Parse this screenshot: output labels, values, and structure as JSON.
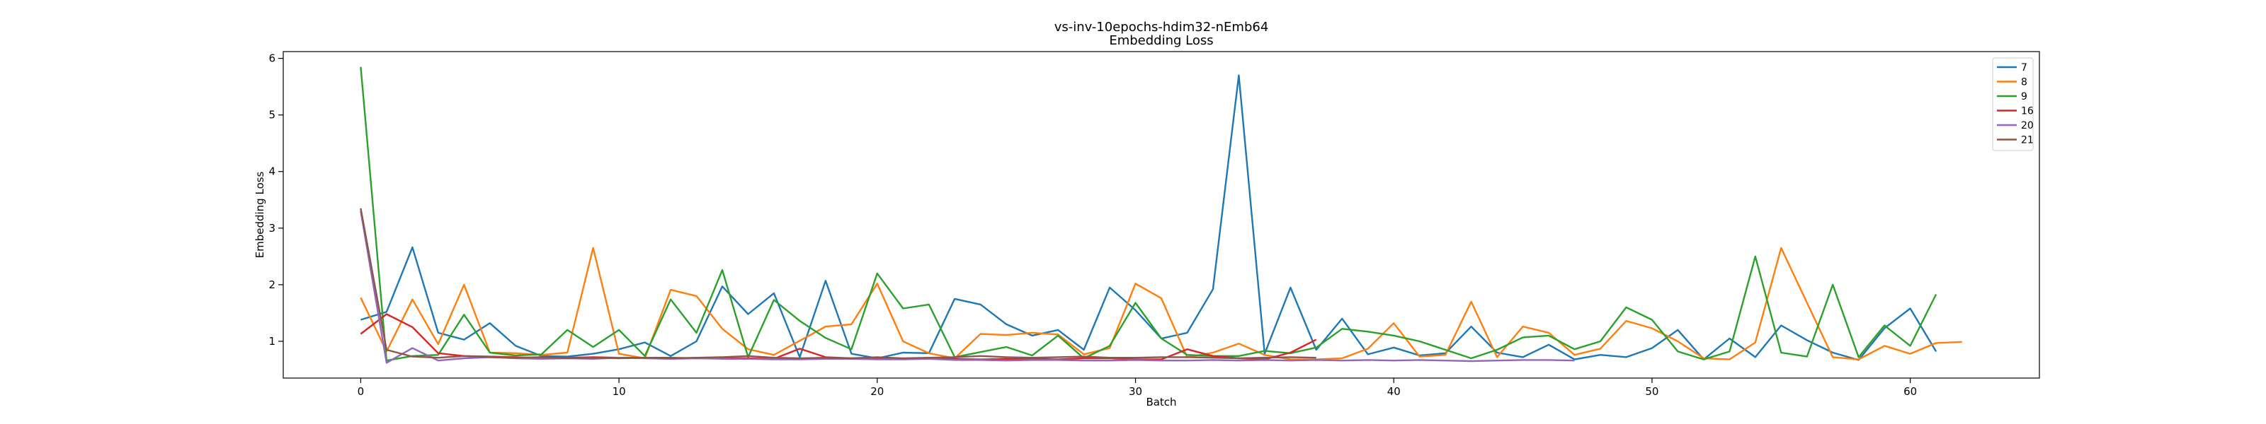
{
  "chart_data": {
    "type": "line",
    "title": "vs-inv-10epochs-hdim32-nEmb64",
    "subtitle": "Embedding Loss",
    "xlabel": "Batch",
    "ylabel": "Embedding Loss",
    "xlim": [
      -3,
      65
    ],
    "ylim": [
      0.35,
      6.12
    ],
    "xticks": [
      0,
      10,
      20,
      30,
      40,
      50,
      60
    ],
    "yticks": [
      1,
      2,
      3,
      4,
      5,
      6
    ],
    "grid": false,
    "legend_position": "top-right",
    "series": [
      {
        "name": "7",
        "color": "#1f77b4",
        "values": [
          1.38,
          1.52,
          2.66,
          1.15,
          1.03,
          1.32,
          0.92,
          0.74,
          0.73,
          0.78,
          0.86,
          0.98,
          0.74,
          1.0,
          1.97,
          1.48,
          1.85,
          0.72,
          2.07,
          0.78,
          0.7,
          0.8,
          0.79,
          1.75,
          1.65,
          1.3,
          1.1,
          1.2,
          0.85,
          1.95,
          1.55,
          1.05,
          1.15,
          1.92,
          5.7,
          0.78,
          1.95,
          0.85,
          1.4,
          0.77,
          0.89,
          0.75,
          0.79,
          1.26,
          0.8,
          0.72,
          0.94,
          0.68,
          0.76,
          0.72,
          0.88,
          1.2,
          0.68,
          1.05,
          0.72,
          1.28,
          1.02,
          0.8,
          0.67,
          1.23,
          1.58,
          0.82
        ]
      },
      {
        "name": "8",
        "color": "#ff7f0e",
        "values": [
          1.77,
          0.82,
          1.74,
          0.95,
          2.0,
          0.8,
          0.79,
          0.76,
          0.8,
          2.65,
          0.78,
          0.7,
          1.91,
          1.8,
          1.22,
          0.86,
          0.76,
          1.01,
          1.26,
          1.3,
          2.02,
          1.0,
          0.79,
          0.7,
          1.13,
          1.11,
          1.15,
          1.12,
          0.77,
          0.88,
          2.02,
          1.76,
          0.72,
          0.8,
          0.96,
          0.76,
          0.68,
          0.68,
          0.7,
          0.87,
          1.32,
          0.73,
          0.76,
          1.7,
          0.72,
          1.26,
          1.15,
          0.76,
          0.87,
          1.36,
          1.23,
          1.0,
          0.7,
          0.68,
          0.98,
          2.65,
          1.68,
          0.72,
          0.68,
          0.92,
          0.78,
          0.97,
          0.99
        ]
      },
      {
        "name": "9",
        "color": "#2ca02c",
        "values": [
          5.85,
          0.66,
          0.74,
          0.76,
          1.47,
          0.8,
          0.75,
          0.77,
          1.2,
          0.9,
          1.2,
          0.74,
          1.74,
          1.15,
          2.26,
          0.72,
          1.73,
          1.36,
          1.06,
          0.86,
          2.2,
          1.58,
          1.65,
          0.72,
          0.81,
          0.9,
          0.75,
          1.1,
          0.7,
          0.92,
          1.68,
          1.05,
          0.76,
          0.74,
          0.74,
          0.83,
          0.79,
          0.89,
          1.22,
          1.17,
          1.1,
          1.0,
          0.85,
          0.7,
          0.85,
          1.07,
          1.1,
          0.86,
          1.0,
          1.6,
          1.38,
          0.82,
          0.68,
          0.82,
          2.5,
          0.8,
          0.73,
          2.0,
          0.72,
          1.28,
          0.92,
          1.83
        ]
      },
      {
        "name": "16",
        "color": "#d62728",
        "values": [
          1.13,
          1.48,
          1.25,
          0.79,
          0.74,
          0.73,
          0.72,
          0.7,
          0.71,
          0.72,
          0.71,
          0.71,
          0.71,
          0.7,
          0.7,
          0.7,
          0.69,
          0.87,
          0.72,
          0.7,
          0.7,
          0.69,
          0.7,
          0.69,
          0.68,
          0.69,
          0.69,
          0.68,
          0.7,
          0.7,
          0.68,
          0.68,
          0.86,
          0.74,
          0.7,
          0.68,
          0.8,
          1.03
        ]
      },
      {
        "name": "20",
        "color": "#9467bd",
        "values": [
          3.3,
          0.62,
          0.88,
          0.66,
          0.7,
          0.72,
          0.7,
          0.69,
          0.7,
          0.69,
          0.71,
          0.7,
          0.69,
          0.7,
          0.69,
          0.69,
          0.68,
          0.68,
          0.69,
          0.69,
          0.68,
          0.68,
          0.69,
          0.67,
          0.67,
          0.66,
          0.67,
          0.67,
          0.66,
          0.66,
          0.67,
          0.66,
          0.66,
          0.67,
          0.66,
          0.67,
          0.66,
          0.67,
          0.66,
          0.67,
          0.66,
          0.67,
          0.66,
          0.65,
          0.66,
          0.67,
          0.67,
          0.66
        ]
      },
      {
        "name": "21",
        "color": "#8c564b",
        "values": [
          3.35,
          0.85,
          0.73,
          0.71,
          0.74,
          0.72,
          0.71,
          0.72,
          0.7,
          0.71,
          0.7,
          0.71,
          0.7,
          0.71,
          0.72,
          0.74,
          0.71,
          0.7,
          0.71,
          0.7,
          0.72,
          0.7,
          0.71,
          0.72,
          0.74,
          0.72,
          0.71,
          0.72,
          0.73,
          0.71,
          0.71,
          0.72,
          0.72,
          0.71,
          0.7,
          0.71,
          0.72,
          0.71
        ]
      }
    ]
  }
}
